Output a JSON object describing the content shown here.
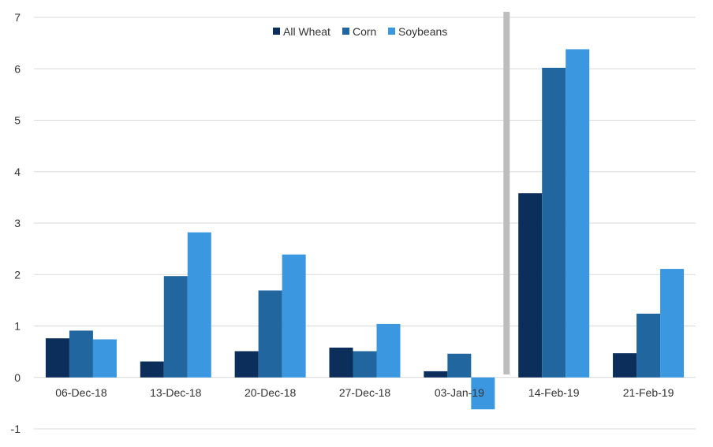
{
  "chart_data": {
    "type": "bar",
    "title": "",
    "xlabel": "",
    "ylabel": "",
    "ylim": [
      -1,
      7
    ],
    "yticks": [
      -1,
      0,
      1,
      2,
      3,
      4,
      5,
      6,
      7
    ],
    "grid": "horizontal",
    "legend": "top-center",
    "categories": [
      "06-Dec-18",
      "13-Dec-18",
      "20-Dec-18",
      "27-Dec-18",
      "03-Jan-19",
      "14-Feb-19",
      "21-Feb-19"
    ],
    "series": [
      {
        "name": "All Wheat",
        "color": "#0b2e5a",
        "values": [
          0.76,
          0.31,
          0.51,
          0.58,
          0.12,
          3.58,
          0.47
        ]
      },
      {
        "name": "Corn",
        "color": "#21669f",
        "values": [
          0.91,
          1.97,
          1.69,
          0.51,
          0.46,
          6.02,
          1.24
        ]
      },
      {
        "name": "Soybeans",
        "color": "#3b97e0",
        "values": [
          0.74,
          2.82,
          2.39,
          1.04,
          -0.62,
          6.38,
          2.11
        ]
      }
    ],
    "separator": {
      "after_category": "03-Jan-19",
      "color": "#bdbdbd"
    }
  }
}
